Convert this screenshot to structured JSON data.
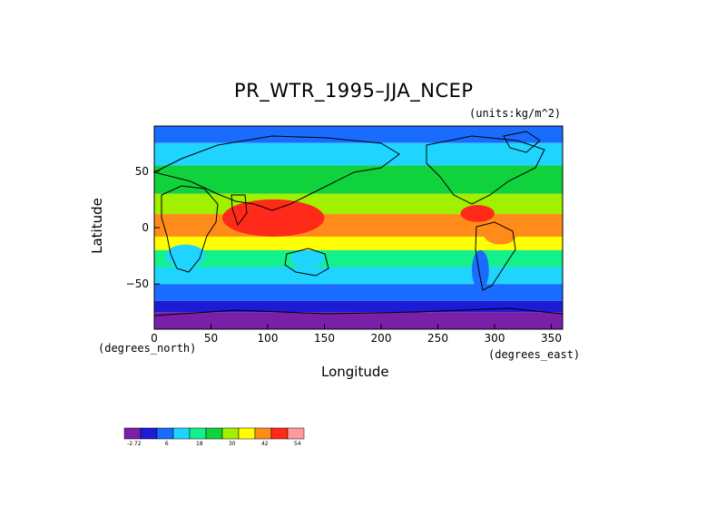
{
  "chart_data": {
    "type": "heatmap",
    "title": "PR_WTR_1995–JJA_NCEP",
    "units_label": "(units:kg/m^2)",
    "xlabel": "Longitude",
    "ylabel": "Latitude",
    "x_unit_label": "(degrees_east)",
    "y_unit_label": "(degrees_north)",
    "xlim": [
      0,
      360
    ],
    "ylim": [
      -90,
      90
    ],
    "x_ticks": [
      "0",
      "50",
      "100",
      "150",
      "200",
      "250",
      "300",
      "350"
    ],
    "y_ticks": [
      "50",
      "0",
      "−50"
    ],
    "colorbar": {
      "tick_labels": [
        "-2.72",
        "6",
        "18",
        "30",
        "42",
        "54"
      ],
      "colors": [
        "#7a1fa8",
        "#1c1cd6",
        "#1a6cff",
        "#1fd4ff",
        "#14f08c",
        "#10d23c",
        "#a0f000",
        "#ffff00",
        "#ff8c1a",
        "#ff2a1a",
        "#ff9a9a"
      ]
    },
    "bands": [
      {
        "lat": [
          75,
          90
        ],
        "level": 2
      },
      {
        "lat": [
          55,
          75
        ],
        "level": 3
      },
      {
        "lat": [
          30,
          55
        ],
        "level": 5
      },
      {
        "lat": [
          12,
          30
        ],
        "level": 6
      },
      {
        "lat": [
          -8,
          12
        ],
        "level": 8
      },
      {
        "lat": [
          -20,
          -8
        ],
        "level": 7
      },
      {
        "lat": [
          -35,
          -20
        ],
        "level": 4
      },
      {
        "lat": [
          -50,
          -35
        ],
        "level": 3
      },
      {
        "lat": [
          -65,
          -50
        ],
        "level": 2
      },
      {
        "lat": [
          -75,
          -65
        ],
        "level": 1
      },
      {
        "lat": [
          -90,
          -75
        ],
        "level": 0
      }
    ],
    "hotspots": [
      {
        "lon": [
          60,
          150
        ],
        "lat": [
          -8,
          25
        ],
        "level": 9
      },
      {
        "lon": [
          100,
          135
        ],
        "lat": [
          -5,
          12
        ],
        "level": 9
      },
      {
        "lon": [
          270,
          300
        ],
        "lat": [
          5,
          20
        ],
        "level": 9
      },
      {
        "lon": [
          290,
          320
        ],
        "lat": [
          -15,
          5
        ],
        "level": 8
      },
      {
        "lon": [
          10,
          45
        ],
        "lat": [
          -35,
          -15
        ],
        "level": 3
      },
      {
        "lon": [
          280,
          295
        ],
        "lat": [
          -55,
          -20
        ],
        "level": 2
      },
      {
        "lon": [
          120,
          150
        ],
        "lat": [
          -35,
          -20
        ],
        "level": 3
      }
    ]
  }
}
